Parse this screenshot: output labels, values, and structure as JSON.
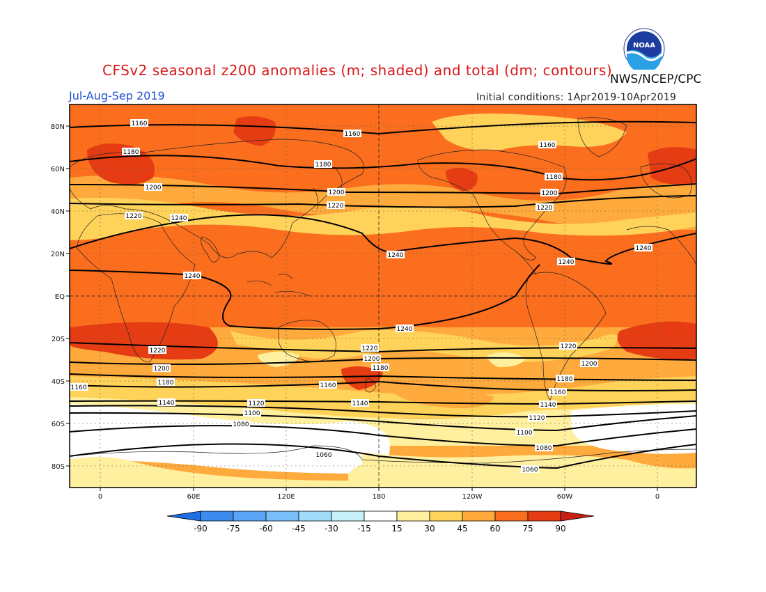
{
  "header": {
    "title": "CFSv2 seasonal z200 anomalies (m; shaded) and total (dm; contours)",
    "season": "Jul-Aug-Sep 2019",
    "agency": "NWS/NCEP/CPC",
    "initial_conditions": "Initial conditions: 1Apr2019-10Apr2019",
    "logo_text": "NOAA"
  },
  "map": {
    "lat_ticks": [
      "80N",
      "60N",
      "40N",
      "20N",
      "EQ",
      "20S",
      "40S",
      "60S",
      "80S"
    ],
    "lon_ticks": [
      "0",
      "60E",
      "120E",
      "180",
      "120W",
      "60W",
      "0"
    ],
    "contour_labels": {
      "1060": "1060",
      "1080": "1080",
      "1100": "1100",
      "1120": "1120",
      "1140": "1140",
      "1160": "1160",
      "1180": "1180",
      "1200": "1200",
      "1220": "1220",
      "1240": "1240"
    }
  },
  "colorbar": {
    "labels": [
      "-90",
      "-75",
      "-60",
      "-45",
      "-30",
      "-15",
      "15",
      "30",
      "45",
      "60",
      "75",
      "90"
    ],
    "colors": [
      "#1e6ee6",
      "#3c8cf0",
      "#5aa5f5",
      "#78bef8",
      "#a0dcfa",
      "#c8f0f8",
      "#ffffff",
      "#fff0a0",
      "#ffd25a",
      "#ffaa3c",
      "#fa6e1e",
      "#e63c14",
      "#c81e14"
    ]
  },
  "palette": {
    "white": "#ffffff",
    "pale_yellow": "#fff0a0",
    "yellow": "#ffd25a",
    "orange": "#ffaa3c",
    "dark_orange": "#fa6e1e",
    "red_orange": "#e63c14"
  }
}
